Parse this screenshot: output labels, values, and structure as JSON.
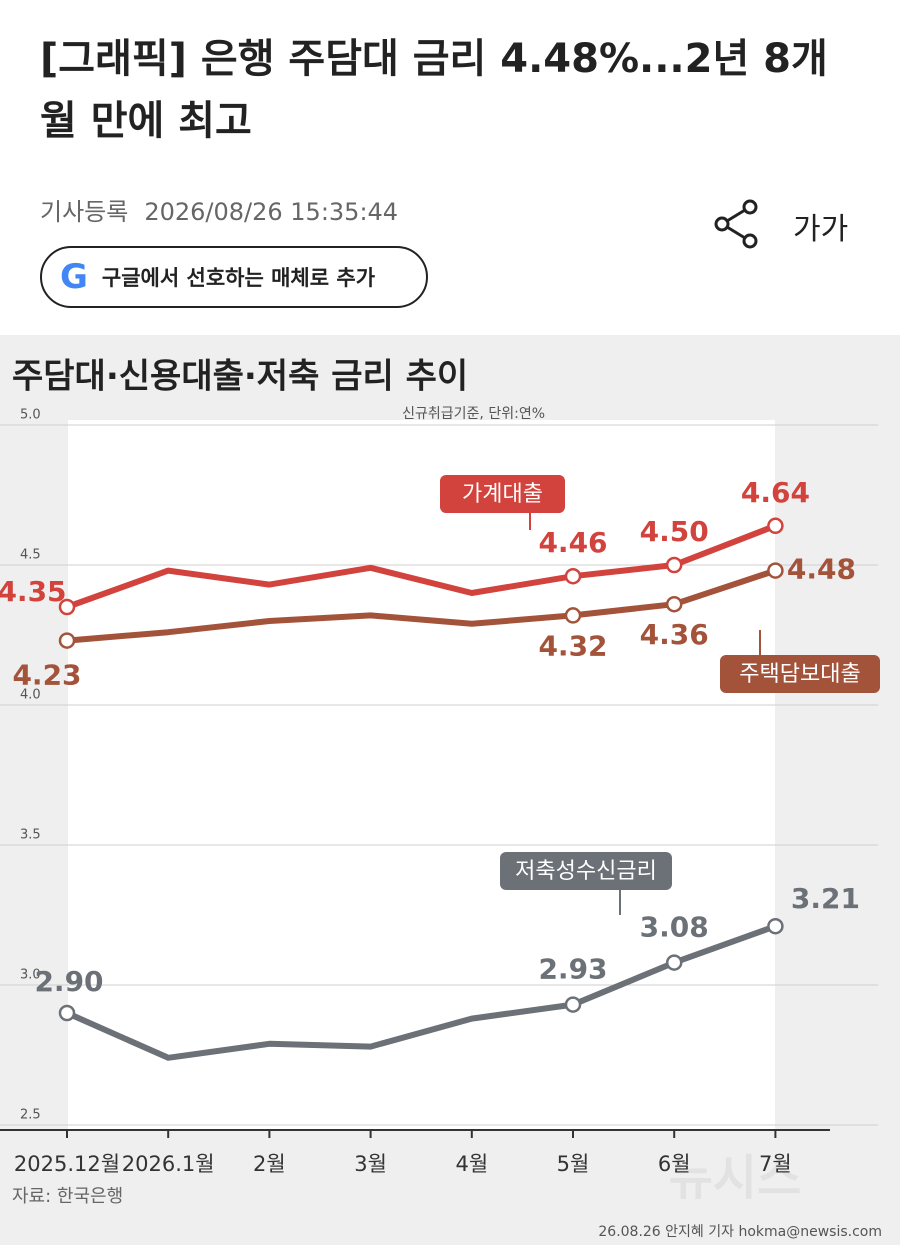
{
  "header": {
    "title": "[그래픽] 은행 주담대 금리 4.48%...2년 8개월 만에 최고",
    "date_label": "기사등록",
    "datetime": "2026/08/26  15:35:44",
    "font_button": "가가",
    "google_button": "구글에서 선호하는 매체로 추가"
  },
  "chart_data": {
    "type": "line",
    "title": "주담대·신용대출·저축 금리 추이",
    "subtitle": "신규취급기준, 단위:연%",
    "categories": [
      "2025.12월",
      "2026.1월",
      "2월",
      "3월",
      "4월",
      "5월",
      "6월",
      "7월"
    ],
    "series": [
      {
        "name": "가계대출",
        "color": "#d2433d",
        "values": [
          4.35,
          4.48,
          4.43,
          4.49,
          4.4,
          4.46,
          4.5,
          4.64
        ],
        "value_labels": [
          "4.35",
          null,
          null,
          null,
          null,
          "4.46",
          "4.50",
          "4.64"
        ]
      },
      {
        "name": "주택담보대출",
        "color": "#a4533b",
        "values": [
          4.23,
          4.26,
          4.3,
          4.32,
          4.29,
          4.32,
          4.36,
          4.48
        ],
        "value_labels": [
          "4.23",
          null,
          null,
          null,
          null,
          "4.32",
          "4.36",
          "4.48"
        ]
      },
      {
        "name": "저축성수신금리",
        "color": "#6b7177",
        "values": [
          2.9,
          2.74,
          2.79,
          2.78,
          2.88,
          2.93,
          3.08,
          3.21
        ],
        "value_labels": [
          "2.90",
          null,
          null,
          null,
          null,
          "2.93",
          "3.08",
          "3.21"
        ]
      }
    ],
    "ylim": [
      2.5,
      5.0
    ],
    "yticks": [
      2.5,
      {
        "value": 3,
        "label": "3.0"
      },
      3.5,
      {
        "value": 4,
        "label": "4.0"
      },
      4.5,
      {
        "value": 5,
        "label": "5.0"
      }
    ],
    "grid": true,
    "source": "자료: 한국은행",
    "credit": "26.08.26 안지혜 기자 hokma@newsis.com",
    "watermark": "뉴시스"
  }
}
